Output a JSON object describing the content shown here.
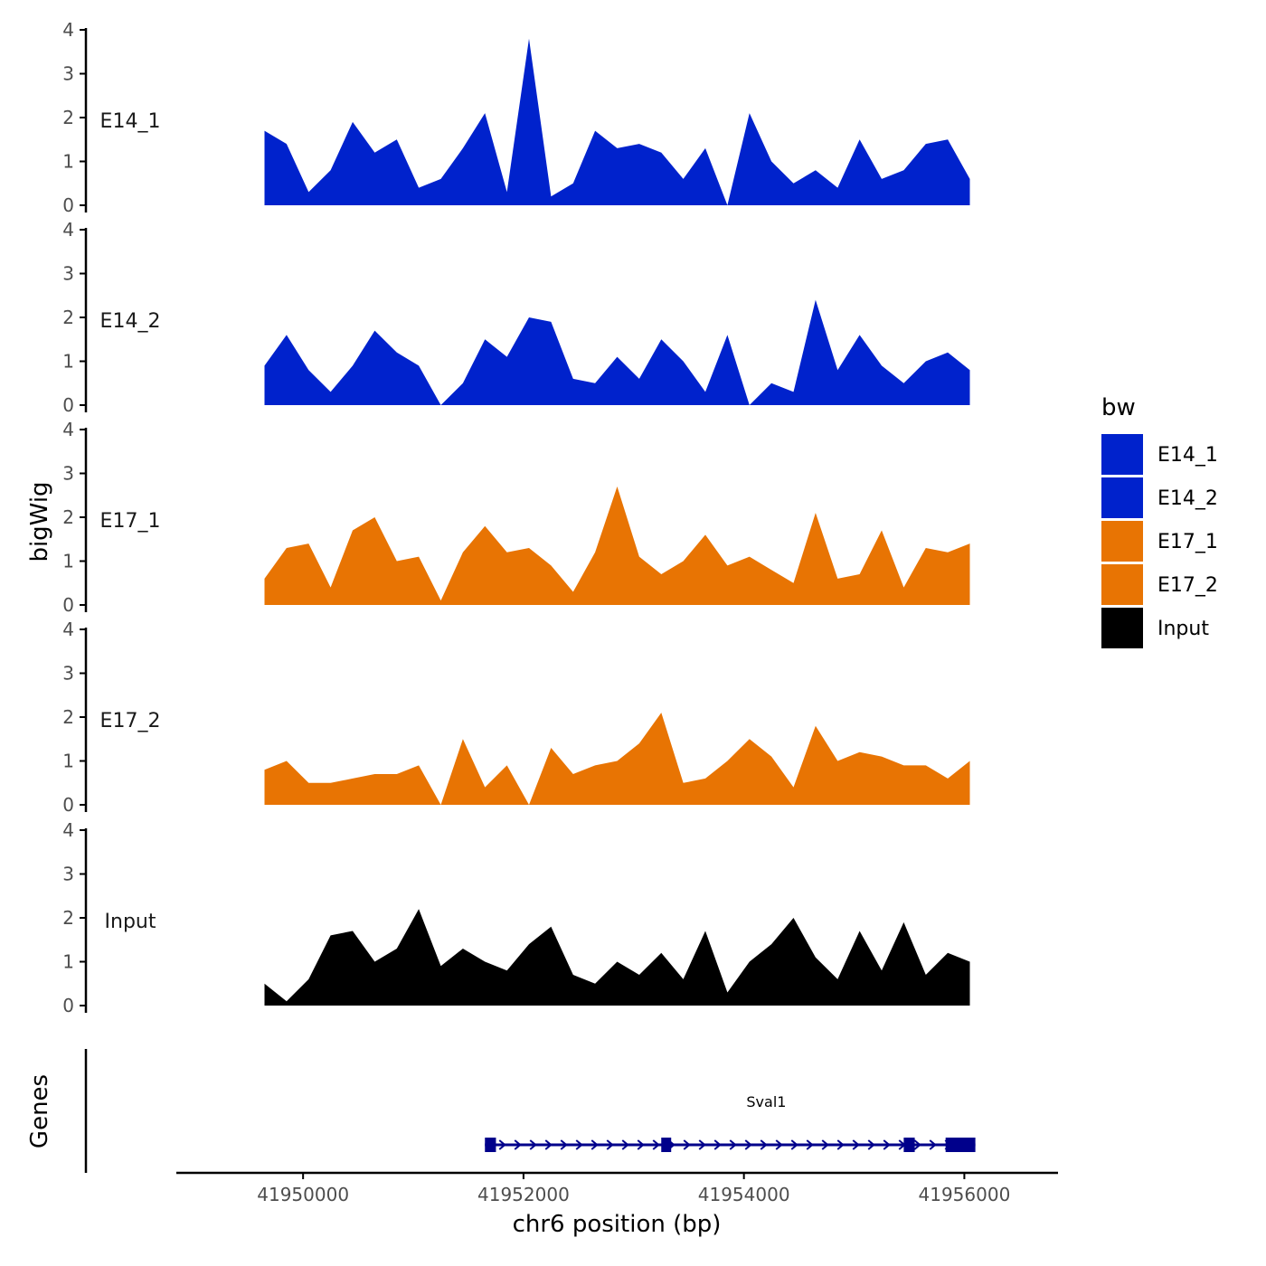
{
  "chart_data": {
    "type": "area",
    "x": [
      41949650,
      41949850,
      41950050,
      41950250,
      41950450,
      41950650,
      41950850,
      41951050,
      41951250,
      41951450,
      41951650,
      41951850,
      41952050,
      41952250,
      41952450,
      41952650,
      41952850,
      41953050,
      41953250,
      41953450,
      41953650,
      41953850,
      41954050,
      41954250,
      41954450,
      41954650,
      41954850,
      41955050,
      41955250,
      41955450,
      41955650,
      41955850,
      41956050
    ],
    "series": [
      {
        "name": "E14_1",
        "color": "#0022cc",
        "values": [
          1.7,
          1.4,
          0.3,
          0.8,
          1.9,
          1.2,
          1.5,
          0.4,
          0.6,
          1.3,
          2.1,
          0.3,
          3.8,
          0.2,
          0.5,
          1.7,
          1.3,
          1.4,
          1.2,
          0.6,
          1.3,
          0.0,
          2.1,
          1.0,
          0.5,
          0.8,
          0.4,
          1.5,
          0.6,
          0.8,
          1.4,
          1.5,
          0.6
        ]
      },
      {
        "name": "E14_2",
        "color": "#0022cc",
        "values": [
          0.9,
          1.6,
          0.8,
          0.3,
          0.9,
          1.7,
          1.2,
          0.9,
          0.0,
          0.5,
          1.5,
          1.1,
          2.0,
          1.9,
          0.6,
          0.5,
          1.1,
          0.6,
          1.5,
          1.0,
          0.3,
          1.6,
          0.0,
          0.5,
          0.3,
          2.4,
          0.8,
          1.6,
          0.9,
          0.5,
          1.0,
          1.2,
          0.8
        ]
      },
      {
        "name": "E17_1",
        "color": "#e87403",
        "values": [
          0.6,
          1.3,
          1.4,
          0.4,
          1.7,
          2.0,
          1.0,
          1.1,
          0.1,
          1.2,
          1.8,
          1.2,
          1.3,
          0.9,
          0.3,
          1.2,
          2.7,
          1.1,
          0.7,
          1.0,
          1.6,
          0.9,
          1.1,
          0.8,
          0.5,
          2.1,
          0.6,
          0.7,
          1.7,
          0.4,
          1.3,
          1.2,
          1.4
        ]
      },
      {
        "name": "E17_2",
        "color": "#e87403",
        "values": [
          0.8,
          1.0,
          0.5,
          0.5,
          0.6,
          0.7,
          0.7,
          0.9,
          0.0,
          1.5,
          0.4,
          0.9,
          0.0,
          1.3,
          0.7,
          0.9,
          1.0,
          1.4,
          2.1,
          0.5,
          0.6,
          1.0,
          1.5,
          1.1,
          0.4,
          1.8,
          1.0,
          1.2,
          1.1,
          0.9,
          0.9,
          0.6,
          1.0
        ]
      },
      {
        "name": "Input",
        "color": "#000000",
        "values": [
          0.5,
          0.1,
          0.6,
          1.6,
          1.7,
          1.0,
          1.3,
          2.2,
          0.9,
          1.3,
          1.0,
          0.8,
          1.4,
          1.8,
          0.7,
          0.5,
          1.0,
          0.7,
          1.2,
          0.6,
          1.7,
          0.3,
          1.0,
          1.4,
          2.0,
          1.1,
          0.6,
          1.7,
          0.8,
          1.9,
          0.7,
          1.2,
          1.0
        ]
      }
    ],
    "ylim": [
      0,
      4
    ],
    "yticks": [
      "0",
      "1",
      "2",
      "3",
      "4"
    ],
    "xlim": [
      41948850,
      41956850
    ],
    "xticks": [
      41950000,
      41952000,
      41954000,
      41956000
    ],
    "xtick_labels": [
      "41950000",
      "41952000",
      "41954000",
      "41956000"
    ],
    "xlabel": "chr6 position (bp)",
    "ylabel": "bigWig",
    "genes_label": "Genes",
    "legend": {
      "title": "bw",
      "position": "right"
    },
    "gene": {
      "name": "Sval1",
      "start": 41951650,
      "end": 41956100,
      "strand": "+",
      "exons": [
        [
          41951650,
          41951750
        ],
        [
          41953250,
          41953340
        ],
        [
          41955450,
          41955550
        ],
        [
          41955830,
          41956100
        ]
      ],
      "color": "#00008b"
    }
  }
}
